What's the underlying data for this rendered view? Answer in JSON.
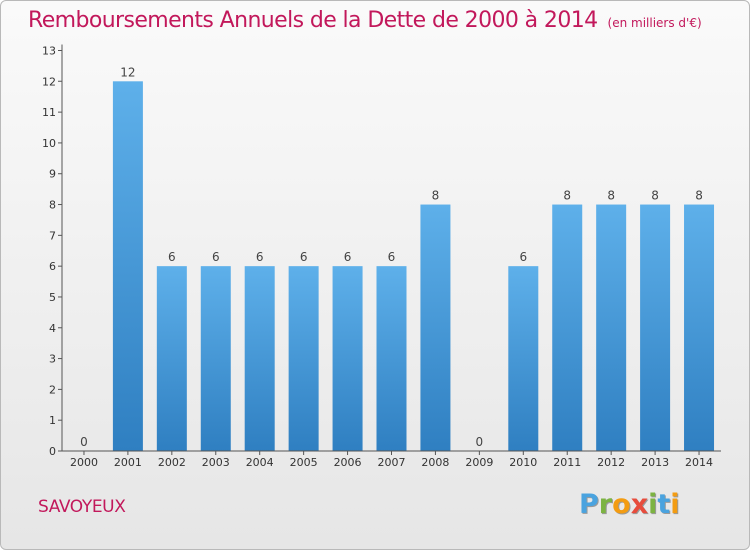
{
  "header": {
    "title": "Remboursements Annuels de la Dette de 2000 à 2014",
    "unit": "(en milliers d'€)"
  },
  "footer": {
    "commune": "SAVOYEUX",
    "brand_letters": [
      {
        "ch": "P",
        "color": "#4aa3df"
      },
      {
        "ch": "r",
        "color": "#7cb342"
      },
      {
        "ch": "o",
        "color": "#f39c12"
      },
      {
        "ch": "x",
        "color": "#e74c3c"
      },
      {
        "ch": "i",
        "color": "#7cb342"
      },
      {
        "ch": "t",
        "color": "#4aa3df"
      },
      {
        "ch": "i",
        "color": "#f39c12"
      }
    ]
  },
  "chart_data": {
    "type": "bar",
    "categories": [
      "2000",
      "2001",
      "2002",
      "2003",
      "2004",
      "2005",
      "2006",
      "2007",
      "2008",
      "2009",
      "2010",
      "2011",
      "2012",
      "2013",
      "2014"
    ],
    "values": [
      0,
      12,
      6,
      6,
      6,
      6,
      6,
      6,
      8,
      0,
      6,
      8,
      8,
      8,
      8
    ],
    "data_labels": [
      "0",
      "12",
      "6",
      "6",
      "6",
      "6",
      "6",
      "6",
      "8",
      "0",
      "6",
      "8",
      "8",
      "8",
      "8"
    ],
    "yticks": [
      0,
      1,
      2,
      3,
      4,
      5,
      6,
      7,
      8,
      9,
      10,
      11,
      12,
      13
    ],
    "ylim": [
      0,
      13
    ],
    "grid": false,
    "bar_color": "#4d9fdb",
    "axis_color": "#555555"
  }
}
